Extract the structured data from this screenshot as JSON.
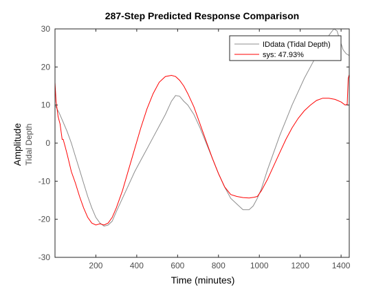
{
  "chart_data": {
    "type": "line",
    "title": "287-Step Predicted Response Comparison",
    "xlabel": "Time (minutes)",
    "ylabel": "Amplitude",
    "ylabel_sub": "Tidal Depth",
    "xlim": [
      0,
      1440
    ],
    "ylim": [
      -30,
      30
    ],
    "xticks": [
      200,
      400,
      600,
      800,
      1000,
      1200,
      1400
    ],
    "yticks": [
      -30,
      -20,
      -10,
      0,
      10,
      20,
      30
    ],
    "grid": false,
    "legend_position": "top-right",
    "series": [
      {
        "name": "IDdata (Tidal Depth)",
        "color": "#8c8c8c",
        "x": [
          0,
          20,
          40,
          60,
          80,
          100,
          120,
          140,
          160,
          180,
          200,
          220,
          240,
          260,
          280,
          300,
          330,
          360,
          390,
          420,
          450,
          480,
          510,
          540,
          570,
          590,
          610,
          630,
          650,
          680,
          710,
          740,
          770,
          800,
          830,
          860,
          890,
          920,
          950,
          970,
          990,
          1010,
          1040,
          1070,
          1100,
          1130,
          1160,
          1190,
          1220,
          1250,
          1280,
          1310,
          1330,
          1350,
          1365,
          1380,
          1395,
          1410,
          1425,
          1440
        ],
        "y": [
          10,
          8,
          5.5,
          3,
          0,
          -3.5,
          -7,
          -10.5,
          -14,
          -17,
          -19.5,
          -21,
          -21.8,
          -21.5,
          -20.5,
          -18,
          -14.5,
          -11,
          -7.5,
          -4.5,
          -1.5,
          1.5,
          4.5,
          7.5,
          11,
          12.5,
          12.3,
          11,
          10,
          7.5,
          4,
          0,
          -4,
          -8,
          -11.5,
          -14.5,
          -16,
          -17.5,
          -17.5,
          -16.5,
          -14.5,
          -12,
          -7,
          -2.5,
          2,
          6,
          10,
          13.5,
          17,
          20,
          23,
          25.5,
          27.5,
          29,
          30,
          29.5,
          27,
          24.5,
          23.5,
          23
        ]
      },
      {
        "name": "sys: 47.93%",
        "color": "#ff0000",
        "x": [
          0,
          5,
          10,
          15,
          20,
          25,
          30,
          35,
          40,
          45,
          50,
          60,
          80,
          100,
          120,
          140,
          160,
          180,
          200,
          220,
          240,
          260,
          280,
          300,
          330,
          360,
          390,
          420,
          450,
          480,
          510,
          540,
          570,
          590,
          610,
          630,
          650,
          680,
          710,
          740,
          770,
          800,
          830,
          860,
          890,
          920,
          950,
          975,
          990,
          1010,
          1040,
          1070,
          1100,
          1130,
          1160,
          1190,
          1220,
          1250,
          1280,
          1310,
          1340,
          1370,
          1400,
          1420,
          1430,
          1435,
          1440
        ],
        "y": [
          16,
          11,
          9,
          7,
          6,
          5,
          3,
          1,
          1,
          0,
          -1,
          -3,
          -7.5,
          -10.5,
          -14,
          -17,
          -19.5,
          -21,
          -21.5,
          -21.2,
          -21.5,
          -21,
          -19.5,
          -17,
          -12.5,
          -7,
          -1.5,
          4,
          9,
          13,
          16,
          17.5,
          17.8,
          17.5,
          16.5,
          15,
          13,
          9.5,
          5,
          0.5,
          -4,
          -8,
          -11.5,
          -13.5,
          -14,
          -14.3,
          -14.4,
          -14.2,
          -14,
          -12.5,
          -9.5,
          -6,
          -2.5,
          1,
          4,
          6.5,
          8.5,
          10,
          11.2,
          11.8,
          11.8,
          11.5,
          10.8,
          10,
          10.2,
          17,
          18
        ]
      }
    ]
  }
}
